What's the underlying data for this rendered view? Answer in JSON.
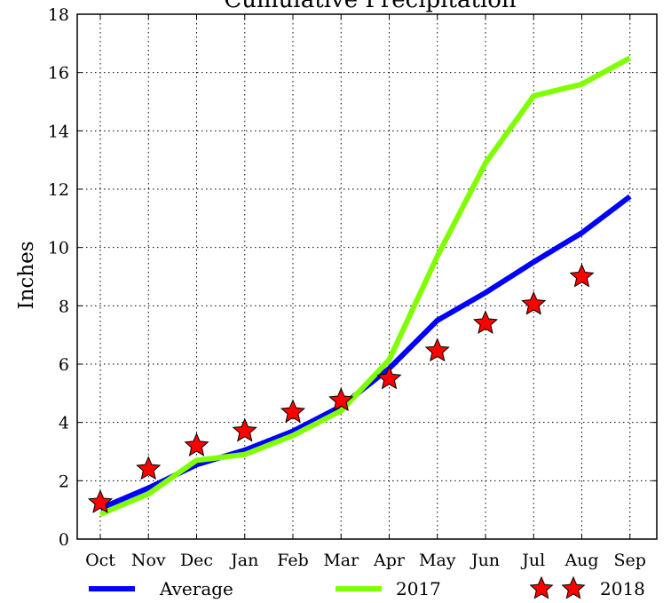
{
  "chart_data": {
    "type": "line",
    "title": "Cumulative Precipitation",
    "xlabel": "",
    "ylabel": "Inches",
    "categories": [
      "Oct",
      "Nov",
      "Dec",
      "Jan",
      "Feb",
      "Mar",
      "Apr",
      "May",
      "Jun",
      "Jul",
      "Aug",
      "Sep"
    ],
    "ylim": [
      0,
      18
    ],
    "yticks": [
      0,
      2,
      4,
      6,
      8,
      10,
      12,
      14,
      16,
      18
    ],
    "grid": true,
    "legend_position": "bottom",
    "series": [
      {
        "name": "Average",
        "style": "line",
        "color": "#0000ff",
        "values": [
          1.05,
          1.75,
          2.55,
          3.05,
          3.7,
          4.55,
          5.85,
          7.5,
          8.45,
          9.5,
          10.5,
          11.75
        ]
      },
      {
        "name": "2017",
        "style": "line",
        "color": "#7fff00",
        "values": [
          0.85,
          1.55,
          2.7,
          2.9,
          3.55,
          4.4,
          6.15,
          9.7,
          12.9,
          15.2,
          15.6,
          16.5
        ]
      },
      {
        "name": "2018",
        "style": "star-markers",
        "color": "#ff0000",
        "values": [
          1.25,
          2.4,
          3.2,
          3.7,
          4.35,
          4.75,
          5.5,
          6.45,
          7.4,
          8.05,
          9.0,
          null
        ]
      }
    ]
  }
}
